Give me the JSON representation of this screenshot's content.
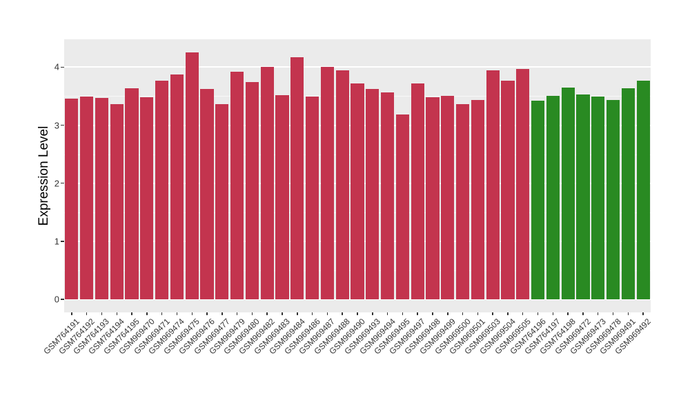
{
  "chart_data": {
    "type": "bar",
    "title": "",
    "xlabel": "",
    "ylabel": "Expression Level",
    "ylim": [
      0,
      4.47
    ],
    "yticks": [
      "0",
      "1",
      "2",
      "3",
      "4"
    ],
    "minor_gridlines": [
      0.5,
      1.5,
      2.5,
      3.5
    ],
    "grid": "on",
    "legend_position": "none",
    "categories": [
      "GSM764191",
      "GSM764192",
      "GSM764193",
      "GSM764194",
      "GSM764195",
      "GSM969470",
      "GSM969471",
      "GSM969474",
      "GSM969475",
      "GSM969476",
      "GSM969477",
      "GSM969479",
      "GSM969480",
      "GSM969482",
      "GSM969483",
      "GSM969484",
      "GSM969486",
      "GSM969487",
      "GSM969488",
      "GSM969490",
      "GSM969493",
      "GSM969494",
      "GSM969495",
      "GSM969497",
      "GSM969498",
      "GSM969499",
      "GSM969500",
      "GSM969501",
      "GSM969503",
      "GSM969504",
      "GSM969505",
      "GSM764196",
      "GSM764197",
      "GSM764198",
      "GSM969472",
      "GSM969473",
      "GSM969478",
      "GSM969491",
      "GSM969492"
    ],
    "values": [
      3.46,
      3.49,
      3.47,
      3.36,
      3.64,
      3.48,
      3.77,
      3.87,
      4.26,
      3.62,
      3.36,
      3.92,
      3.74,
      4.01,
      3.52,
      4.17,
      3.49,
      4.0,
      3.94,
      3.72,
      3.63,
      3.56,
      3.18,
      3.72,
      3.48,
      3.51,
      3.36,
      3.44,
      3.94,
      3.77,
      3.97,
      3.42,
      3.51,
      3.65,
      3.53,
      3.49,
      3.43,
      3.64,
      3.77
    ],
    "bar_color_keys": [
      "red",
      "red",
      "red",
      "red",
      "red",
      "red",
      "red",
      "red",
      "red",
      "red",
      "red",
      "red",
      "red",
      "red",
      "red",
      "red",
      "red",
      "red",
      "red",
      "red",
      "red",
      "red",
      "red",
      "red",
      "red",
      "red",
      "red",
      "red",
      "red",
      "red",
      "red",
      "green",
      "green",
      "green",
      "green",
      "green",
      "green",
      "green",
      "green"
    ],
    "group_colors": {
      "red": "#C3344E",
      "green": "#298A22"
    }
  },
  "style_colors": {
    "panel_background": "#EBEBEB",
    "gridline": "#FFFFFF",
    "tick": "#333333",
    "axis_text": "#333333",
    "axis_title": "#000000",
    "figure_background": "#FFFFFF"
  }
}
